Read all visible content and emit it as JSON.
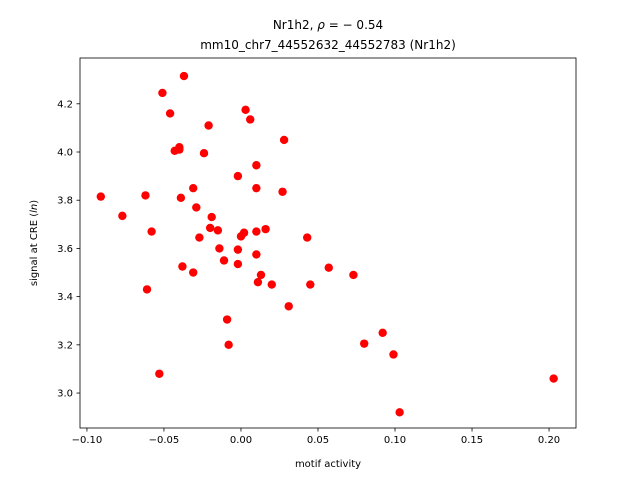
{
  "chart_data": {
    "type": "scatter",
    "title_line1_prefix": "Nr1h2, ",
    "title_line1_rho_symbol": "ρ",
    "title_line1_rho_value": " = − 0.54",
    "title_line2": "mm10_chr7_44552632_44552783 (Nr1h2)",
    "xlabel": "motif activity",
    "ylabel_prefix": "signal at CRE (",
    "ylabel_italic": "ln",
    "ylabel_suffix": ")",
    "xlim": [
      -0.1045,
      0.2175
    ],
    "ylim": [
      2.855,
      4.39
    ],
    "x_ticks": [
      -0.1,
      -0.05,
      0.0,
      0.05,
      0.1,
      0.15,
      0.2
    ],
    "x_tick_labels": [
      "−0.10",
      "−0.05",
      "0.00",
      "0.05",
      "0.10",
      "0.15",
      "0.20"
    ],
    "y_ticks": [
      3.0,
      3.2,
      3.4,
      3.6,
      3.8,
      4.0,
      4.2
    ],
    "y_tick_labels": [
      "3.0",
      "3.2",
      "3.4",
      "3.6",
      "3.8",
      "4.0",
      "4.2"
    ],
    "grid": false,
    "marker_color": "#ff0000",
    "points": [
      {
        "x": -0.091,
        "y": 3.815
      },
      {
        "x": -0.077,
        "y": 3.735
      },
      {
        "x": -0.062,
        "y": 3.82
      },
      {
        "x": -0.061,
        "y": 3.43
      },
      {
        "x": -0.058,
        "y": 3.67
      },
      {
        "x": -0.053,
        "y": 3.08
      },
      {
        "x": -0.051,
        "y": 4.245
      },
      {
        "x": -0.046,
        "y": 4.16
      },
      {
        "x": -0.043,
        "y": 4.005
      },
      {
        "x": -0.04,
        "y": 4.01
      },
      {
        "x": -0.04,
        "y": 4.02
      },
      {
        "x": -0.039,
        "y": 3.81
      },
      {
        "x": -0.038,
        "y": 3.525
      },
      {
        "x": -0.037,
        "y": 4.315
      },
      {
        "x": -0.031,
        "y": 3.85
      },
      {
        "x": -0.031,
        "y": 3.5
      },
      {
        "x": -0.029,
        "y": 3.77
      },
      {
        "x": -0.027,
        "y": 3.645
      },
      {
        "x": -0.024,
        "y": 3.995
      },
      {
        "x": -0.021,
        "y": 4.11
      },
      {
        "x": -0.02,
        "y": 3.685
      },
      {
        "x": -0.019,
        "y": 3.73
      },
      {
        "x": -0.015,
        "y": 3.675
      },
      {
        "x": -0.014,
        "y": 3.6
      },
      {
        "x": -0.011,
        "y": 3.55
      },
      {
        "x": -0.009,
        "y": 3.305
      },
      {
        "x": -0.008,
        "y": 3.2
      },
      {
        "x": -0.002,
        "y": 3.9
      },
      {
        "x": -0.002,
        "y": 3.595
      },
      {
        "x": -0.002,
        "y": 3.535
      },
      {
        "x": 0.0,
        "y": 3.65
      },
      {
        "x": 0.002,
        "y": 3.665
      },
      {
        "x": 0.003,
        "y": 4.175
      },
      {
        "x": 0.006,
        "y": 4.135
      },
      {
        "x": 0.01,
        "y": 3.945
      },
      {
        "x": 0.01,
        "y": 3.85
      },
      {
        "x": 0.01,
        "y": 3.67
      },
      {
        "x": 0.01,
        "y": 3.575
      },
      {
        "x": 0.011,
        "y": 3.46
      },
      {
        "x": 0.013,
        "y": 3.49
      },
      {
        "x": 0.016,
        "y": 3.68
      },
      {
        "x": 0.02,
        "y": 3.45
      },
      {
        "x": 0.027,
        "y": 3.835
      },
      {
        "x": 0.028,
        "y": 4.05
      },
      {
        "x": 0.031,
        "y": 3.36
      },
      {
        "x": 0.043,
        "y": 3.645
      },
      {
        "x": 0.045,
        "y": 3.45
      },
      {
        "x": 0.057,
        "y": 3.52
      },
      {
        "x": 0.073,
        "y": 3.49
      },
      {
        "x": 0.08,
        "y": 3.205
      },
      {
        "x": 0.092,
        "y": 3.25
      },
      {
        "x": 0.099,
        "y": 3.16
      },
      {
        "x": 0.103,
        "y": 2.92
      },
      {
        "x": 0.203,
        "y": 3.06
      }
    ]
  }
}
